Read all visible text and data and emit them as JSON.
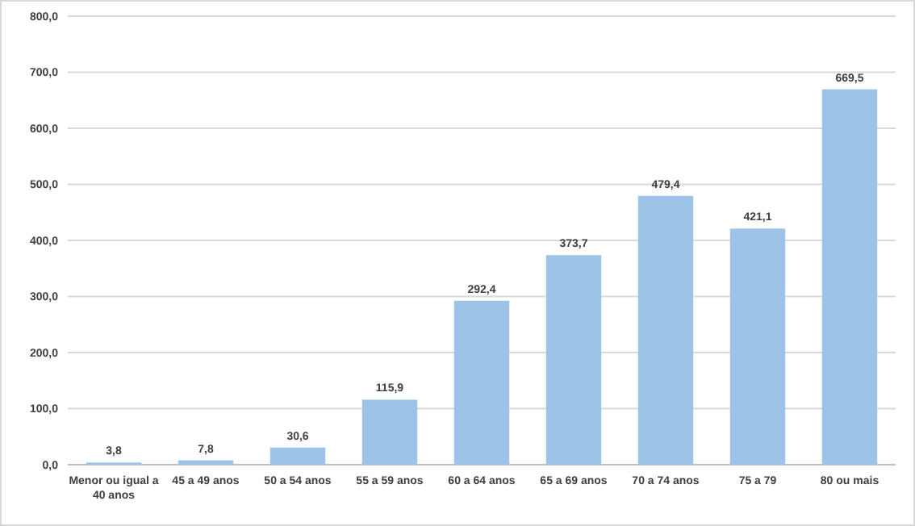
{
  "chart_data": {
    "type": "bar",
    "categories": [
      "Menor ou igual a 40 anos",
      "45 a 49 anos",
      "50 a 54 anos",
      "55 a 59 anos",
      "60 a 64 anos",
      "65 a 69 anos",
      "70 a 74 anos",
      "75 a 79",
      "80 ou mais"
    ],
    "values": [
      3.8,
      7.8,
      30.6,
      115.9,
      292.4,
      373.7,
      479.4,
      421.1,
      669.5
    ],
    "value_labels": [
      "3,8",
      "7,8",
      "30,6",
      "115,9",
      "292,4",
      "373,7",
      "479,4",
      "421,1",
      "669,5"
    ],
    "color": "#9dc3e6",
    "ylim": [
      0,
      800
    ],
    "yticks": [
      {
        "value": 0,
        "label": "0,0"
      },
      {
        "value": 100,
        "label": "100,0"
      },
      {
        "value": 200,
        "label": "200,0"
      },
      {
        "value": 300,
        "label": "300,0"
      },
      {
        "value": 400,
        "label": "400,0"
      },
      {
        "value": 500,
        "label": "500,0"
      },
      {
        "value": 600,
        "label": "600,0"
      },
      {
        "value": 700,
        "label": "700,0"
      },
      {
        "value": 800,
        "label": "800,0"
      }
    ],
    "grid": "y"
  }
}
